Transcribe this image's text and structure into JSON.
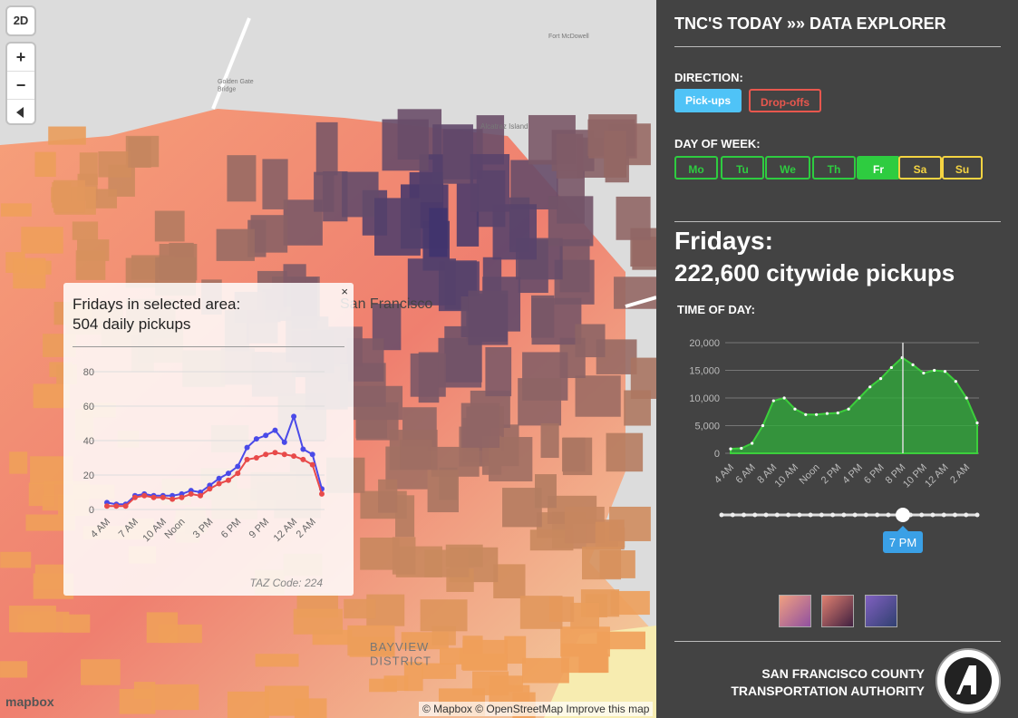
{
  "map": {
    "mode_button": "2D",
    "zoom_in": "+",
    "zoom_out": "−",
    "place_labels": [
      [
        "Golden Gate",
        "Bridge"
      ],
      [
        "Alcatraz Island"
      ],
      [
        "Fort McDowell"
      ],
      [
        "San Francisco"
      ],
      [
        "BAYVIEW",
        "DISTRICT"
      ]
    ],
    "logo": "mapbox",
    "attribution": "© Mapbox © OpenStreetMap Improve this map"
  },
  "popup": {
    "close": "×",
    "title": "Fridays in selected area:",
    "subtitle": "504 daily pickups",
    "footer": "TAZ Code: 224",
    "chart": {
      "type": "line",
      "categories": [
        "4 AM",
        null,
        null,
        "7 AM",
        null,
        null,
        "10 AM",
        null,
        "Noon",
        null,
        null,
        "3 PM",
        null,
        null,
        "6 PM",
        null,
        null,
        "9 PM",
        null,
        null,
        "12 AM",
        null,
        "2 AM",
        null
      ],
      "series": [
        {
          "color": "#4a4ae8",
          "values": [
            4,
            3,
            3,
            8,
            9,
            8,
            8,
            8,
            9,
            11,
            10,
            14,
            18,
            21,
            25,
            36,
            41,
            43,
            46,
            39,
            54,
            35,
            32,
            12
          ]
        },
        {
          "color": "#e84a4a",
          "values": [
            2,
            2,
            2,
            7,
            8,
            7,
            7,
            6,
            7,
            9,
            8,
            12,
            15,
            17,
            21,
            29,
            30,
            32,
            33,
            32,
            31,
            29,
            26,
            9
          ]
        }
      ],
      "ylim": [
        0,
        80
      ],
      "yticks": [
        0,
        20,
        40,
        60,
        80
      ],
      "grid": true
    }
  },
  "panel": {
    "title": "TNC'S TODAY »» DATA EXPLORER",
    "direction_label": "DIRECTION:",
    "directions": [
      "Pick-ups",
      "Drop-offs"
    ],
    "day_label": "DAY OF WEEK:",
    "days": [
      "Mo",
      "Tu",
      "We",
      "Th",
      "Fr",
      "Sa",
      "Su"
    ],
    "headline": "Fridays:",
    "subheadline": "222,600 citywide pickups",
    "time_label": "TIME OF DAY:",
    "chart": {
      "type": "area",
      "categories": [
        "4 AM",
        null,
        "6 AM",
        null,
        "8 AM",
        null,
        "10 AM",
        null,
        "Noon",
        null,
        "2 PM",
        null,
        "4 PM",
        null,
        "6 PM",
        null,
        "8 PM",
        null,
        "10 PM",
        null,
        "12 AM",
        null,
        "2 AM",
        null
      ],
      "values": [
        800,
        900,
        1800,
        5000,
        9500,
        10000,
        8000,
        7000,
        7000,
        7200,
        7300,
        8000,
        10000,
        12000,
        13500,
        15500,
        17300,
        16000,
        14500,
        15000,
        14800,
        13000,
        10000,
        5500
      ],
      "color": "#2fae3a",
      "ylim": [
        0,
        20000
      ],
      "yticks": [
        0,
        {
          "value": 5000,
          "label": "5,000"
        },
        {
          "value": 10000,
          "label": "10,000"
        },
        {
          "value": 15000,
          "label": "15,000"
        },
        {
          "value": 20000,
          "label": "20,000"
        }
      ],
      "grid": true
    },
    "slider_value": "7 PM",
    "footer": [
      "SAN FRANCISCO COUNTY",
      "TRANSPORTATION AUTHORITY"
    ]
  }
}
